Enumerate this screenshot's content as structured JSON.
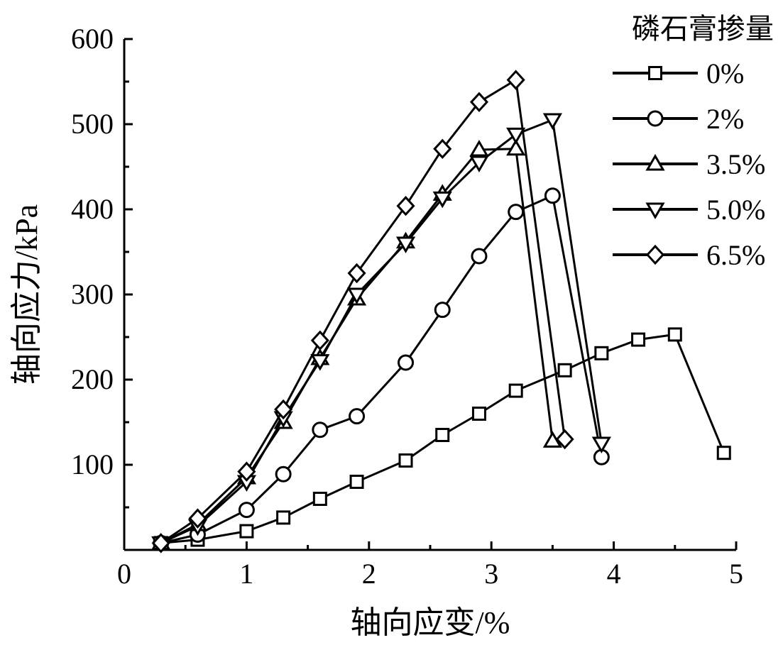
{
  "chart_data": {
    "type": "line",
    "xlabel": "轴向应变/%",
    "ylabel": "轴向应力/kPa",
    "xlim": [
      0,
      5
    ],
    "ylim": [
      0,
      600
    ],
    "xticks": [
      "0",
      "1",
      "2",
      "3",
      "4",
      "5"
    ],
    "yticks": [
      "100",
      "200",
      "300",
      "400",
      "500",
      "600"
    ],
    "grid": false,
    "legend": {
      "title": "磷石膏掺量",
      "placement": "top-right"
    },
    "series": [
      {
        "name": "0%",
        "marker": "square",
        "x": [
          0.3,
          0.6,
          1.0,
          1.3,
          1.6,
          1.9,
          2.3,
          2.6,
          2.9,
          3.2,
          3.6,
          3.9,
          4.2,
          4.5,
          4.9
        ],
        "y": [
          8,
          12,
          22,
          38,
          60,
          80,
          105,
          135,
          160,
          187,
          211,
          231,
          247,
          253,
          114
        ]
      },
      {
        "name": "2%",
        "marker": "circle",
        "x": [
          0.3,
          0.6,
          1.0,
          1.3,
          1.6,
          1.9,
          2.3,
          2.6,
          2.9,
          3.2,
          3.5,
          3.9
        ],
        "y": [
          8,
          18,
          47,
          89,
          141,
          157,
          220,
          282,
          345,
          397,
          416,
          109
        ]
      },
      {
        "name": "3.5%",
        "marker": "triangle-up",
        "x": [
          0.3,
          0.6,
          1.0,
          1.3,
          1.6,
          1.9,
          2.3,
          2.6,
          2.9,
          3.2,
          3.5
        ],
        "y": [
          8,
          30,
          85,
          150,
          225,
          295,
          362,
          418,
          470,
          471,
          128
        ]
      },
      {
        "name": "5.0%",
        "marker": "triangle-down",
        "x": [
          0.3,
          0.6,
          1.0,
          1.3,
          1.6,
          1.9,
          2.3,
          2.6,
          2.9,
          3.2,
          3.5,
          3.9
        ],
        "y": [
          8,
          28,
          80,
          155,
          222,
          300,
          360,
          413,
          455,
          488,
          505,
          125
        ]
      },
      {
        "name": "6.5%",
        "marker": "diamond",
        "x": [
          0.3,
          0.6,
          1.0,
          1.3,
          1.6,
          1.9,
          2.3,
          2.6,
          2.9,
          3.2,
          3.6
        ],
        "y": [
          8,
          37,
          92,
          165,
          246,
          325,
          404,
          471,
          526,
          552,
          130
        ]
      }
    ]
  }
}
